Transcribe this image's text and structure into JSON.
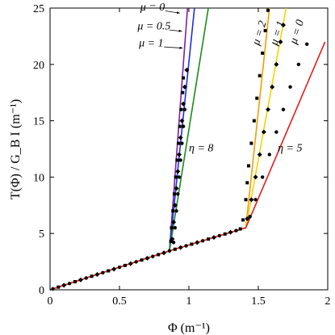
{
  "chart_data": {
    "type": "line",
    "xlabel": "Φ (m⁻¹)",
    "ylabel": "T(Φ) / G_B I (m⁻¹)",
    "xlim": [
      0,
      2
    ],
    "ylim": [
      0,
      25
    ],
    "xticks": [
      "0",
      "0.5",
      "1",
      "1.5",
      "2"
    ],
    "yticks": [
      "0",
      "5",
      "10",
      "15",
      "20",
      "25"
    ],
    "grid": false,
    "legend": "none",
    "series": [
      {
        "color": "#7a1fa2",
        "points": [
          [
            0,
            0
          ],
          [
            0.86,
            3.45
          ],
          [
            0.99,
            25
          ]
        ]
      },
      {
        "color": "#1f2fe0",
        "points": [
          [
            0,
            0
          ],
          [
            0.86,
            3.45
          ],
          [
            1.04,
            25
          ]
        ]
      },
      {
        "color": "#1a8c1a",
        "points": [
          [
            0,
            0
          ],
          [
            0.86,
            3.45
          ],
          [
            1.14,
            25
          ]
        ]
      },
      {
        "color": "#f0a000",
        "points": [
          [
            0,
            0
          ],
          [
            0.86,
            3.45
          ],
          [
            1.41,
            5.5
          ],
          [
            1.58,
            25
          ]
        ]
      },
      {
        "color": "#f2d500",
        "points": [
          [
            0,
            0
          ],
          [
            0.86,
            3.45
          ],
          [
            1.41,
            5.5
          ],
          [
            1.7,
            25
          ]
        ]
      },
      {
        "color": "#e81c1c",
        "points": [
          [
            0,
            0
          ],
          [
            0.86,
            3.45
          ],
          [
            1.41,
            5.5
          ],
          [
            1.98,
            22
          ]
        ]
      }
    ],
    "markers": {
      "low": [
        [
          0.02,
          0.08
        ],
        [
          0.06,
          0.24
        ],
        [
          0.1,
          0.4
        ],
        [
          0.14,
          0.56
        ],
        [
          0.18,
          0.72
        ],
        [
          0.22,
          0.88
        ],
        [
          0.26,
          1.04
        ],
        [
          0.3,
          1.2
        ],
        [
          0.34,
          1.36
        ],
        [
          0.38,
          1.52
        ],
        [
          0.42,
          1.68
        ],
        [
          0.46,
          1.84
        ],
        [
          0.5,
          2.0
        ],
        [
          0.54,
          2.16
        ],
        [
          0.58,
          2.32
        ],
        [
          0.62,
          2.48
        ],
        [
          0.66,
          2.64
        ],
        [
          0.7,
          2.8
        ],
        [
          0.74,
          2.96
        ],
        [
          0.78,
          3.12
        ],
        [
          0.82,
          3.28
        ],
        [
          0.86,
          3.45
        ],
        [
          0.9,
          3.6
        ],
        [
          0.94,
          3.75
        ],
        [
          0.98,
          3.9
        ],
        [
          1.02,
          4.05
        ],
        [
          1.06,
          4.2
        ],
        [
          1.1,
          4.35
        ],
        [
          1.14,
          4.5
        ],
        [
          1.18,
          4.65
        ],
        [
          1.22,
          4.8
        ],
        [
          1.26,
          4.95
        ],
        [
          1.3,
          5.1
        ],
        [
          1.34,
          5.25
        ],
        [
          1.37,
          5.4
        ]
      ],
      "eta8_squares": [
        [
          0.87,
          4.3
        ],
        [
          0.875,
          5.5
        ],
        [
          0.885,
          7.0
        ],
        [
          0.895,
          8.5
        ],
        [
          0.905,
          10.0
        ],
        [
          0.915,
          11.5
        ],
        [
          0.925,
          13.0
        ],
        [
          0.935,
          14.5
        ],
        [
          0.945,
          16.0
        ],
        [
          0.955,
          17.5
        ],
        [
          0.96,
          18.8
        ]
      ],
      "eta8_diamonds": [
        [
          0.88,
          4.5
        ],
        [
          0.89,
          6.0
        ],
        [
          0.9,
          7.5
        ],
        [
          0.91,
          9.0
        ],
        [
          0.92,
          10.5
        ],
        [
          0.93,
          12.0
        ],
        [
          0.94,
          13.5
        ],
        [
          0.95,
          15.0
        ],
        [
          0.96,
          16.5
        ],
        [
          0.97,
          18.0
        ],
        [
          0.985,
          19.5
        ]
      ],
      "eta8_circles": [
        [
          0.89,
          4.2
        ],
        [
          0.9,
          5.5
        ],
        [
          0.91,
          7.0
        ],
        [
          0.92,
          8.5
        ],
        [
          0.93,
          10.0
        ],
        [
          0.94,
          11.5
        ],
        [
          0.95,
          13.0
        ],
        [
          0.96,
          14.5
        ],
        [
          0.97,
          16.0
        ]
      ],
      "eta5_squares": [
        [
          1.39,
          6.2
        ],
        [
          1.41,
          8.0
        ],
        [
          1.42,
          9.5
        ],
        [
          1.43,
          11.0
        ],
        [
          1.45,
          13.0
        ],
        [
          1.47,
          15.0
        ],
        [
          1.49,
          17.0
        ],
        [
          1.51,
          19.0
        ],
        [
          1.53,
          21.0
        ],
        [
          1.55,
          23.0
        ],
        [
          1.57,
          24.8
        ]
      ],
      "eta5_diamonds": [
        [
          1.42,
          6.3
        ],
        [
          1.45,
          8.0
        ],
        [
          1.48,
          10.0
        ],
        [
          1.51,
          12.0
        ],
        [
          1.54,
          14.0
        ],
        [
          1.57,
          16.0
        ],
        [
          1.6,
          18.0
        ],
        [
          1.63,
          20.0
        ],
        [
          1.66,
          22.0
        ],
        [
          1.68,
          23.5
        ]
      ],
      "eta5_circles": [
        [
          1.44,
          6.5
        ],
        [
          1.48,
          8.0
        ],
        [
          1.53,
          10.0
        ],
        [
          1.58,
          12.0
        ],
        [
          1.63,
          14.0
        ],
        [
          1.68,
          16.0
        ],
        [
          1.73,
          18.0
        ],
        [
          1.79,
          20.0
        ],
        [
          1.85,
          21.8
        ]
      ]
    },
    "annotations": [
      {
        "text": "μ = 0",
        "x": 0.65,
        "y": 24.8,
        "anchor": "start"
      },
      {
        "text": "μ = 0.5",
        "x": 0.63,
        "y": 23.1,
        "anchor": "start"
      },
      {
        "text": "μ = 1",
        "x": 0.64,
        "y": 21.6,
        "anchor": "start"
      },
      {
        "text": "η = 8",
        "x": 1.0,
        "y": 12.3,
        "anchor": "start"
      },
      {
        "text": "η = 5",
        "x": 1.64,
        "y": 12.3,
        "anchor": "start"
      }
    ],
    "rotated_annotations": [
      {
        "text": "μ = 2",
        "x": 1.53,
        "y": 22.7
      },
      {
        "text": "μ = 1",
        "x": 1.66,
        "y": 22.7
      },
      {
        "text": "μ = 0",
        "x": 1.8,
        "y": 22.8
      }
    ]
  }
}
